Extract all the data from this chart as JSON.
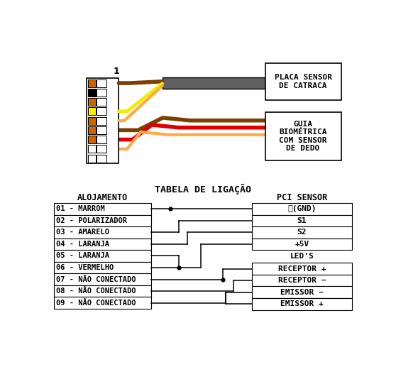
{
  "bg_color": "#ffffff",
  "title_table": "TABELA DE LIGAÇÃO",
  "label_alojamento": "ALOJAMENTO",
  "label_pci": "PCI SENSOR",
  "label_leds": "LED'S",
  "connector_label": "1",
  "box1_label": "PLACA SENSOR\nDE CATRACA",
  "box2_label": "GUIA\nBIOMÉTRICA\nCOM SENSOR\nDE DEDO",
  "alojamento_rows": [
    "01 - MARROM",
    "02 - POLARIZADOR",
    "03 - AMARELO",
    "04 - LARANJA",
    "05 - LARANJA",
    "06 - VERMELHO",
    "07 - NÃO CONECTADO",
    "08 - NÃO CONECTADO",
    "09 - NÃO CONECTADO"
  ],
  "pci_rows": [
    "⏚(GND)",
    "S1",
    "S2",
    "+5V"
  ],
  "led_rows": [
    "RECEPTOR +",
    "RECEPTOR −",
    "EMISSOR −",
    "EMISSOR +"
  ],
  "pin_colors": [
    "#cc6600",
    "#000000",
    "#cc6600",
    "#ffee00",
    "#cc6600",
    "#cc6600",
    "#cc6600",
    "#ffffff",
    "#ffffff"
  ],
  "cable_color": "#606060",
  "wire_brown": "#7b3f00",
  "wire_yellow": "#eeee00",
  "wire_orange_light": "#ffaa44",
  "wire_red": "#dd0000",
  "wire_dark_red": "#aa1100",
  "wire_orange": "#ff6600"
}
